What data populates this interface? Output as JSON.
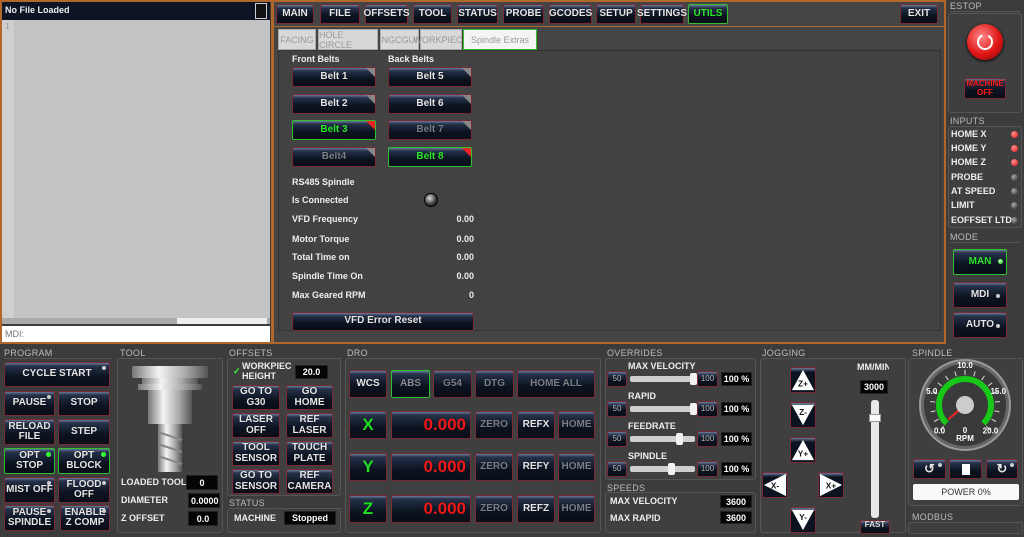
{
  "gcode": {
    "title": "No File Loaded",
    "line_number": "1",
    "mdi_placeholder": "MDI:"
  },
  "nav": {
    "tabs": [
      "MAIN",
      "FILE",
      "OFFSETS",
      "TOOL",
      "STATUS",
      "PROBE",
      "GCODES",
      "SETUP",
      "SETTINGS",
      "UTILS"
    ],
    "active": "UTILS",
    "exit": "EXIT"
  },
  "subtabs": {
    "items": [
      "FACING",
      "HOLE CIRCLE",
      "NGCGUI",
      "WORKPIECE",
      "Spindle Extras"
    ],
    "active": "Spindle Extras"
  },
  "spindle_extras": {
    "front_label": "Front Belts",
    "back_label": "Back Belts",
    "belts": [
      "Belt 1",
      "Belt 2",
      "Belt 3",
      "Belt4",
      "Belt 5",
      "Belt 6",
      "Belt 7",
      "Belt 8"
    ],
    "active_belts": [
      "Belt 3",
      "Belt 8"
    ],
    "rs485_label": "RS485 Spindle",
    "is_connected_label": "Is Connected",
    "rows": [
      {
        "label": "VFD Frequency",
        "value": "0.00"
      },
      {
        "label": "Motor Torque",
        "value": "0.00"
      },
      {
        "label": "Total Time on",
        "value": "0.00"
      },
      {
        "label": "Spindle Time On",
        "value": "0.00"
      },
      {
        "label": "Max Geared RPM",
        "value": "0"
      }
    ],
    "reset_button": "VFD Error Reset"
  },
  "estop": {
    "label": "ESTOP",
    "machine_button": "MACHINE OFF"
  },
  "inputs": {
    "label": "INPUTS",
    "items": [
      {
        "name": "HOME X",
        "state": "on"
      },
      {
        "name": "HOME Y",
        "state": "on"
      },
      {
        "name": "HOME Z",
        "state": "on"
      },
      {
        "name": "PROBE",
        "state": "off"
      },
      {
        "name": "AT SPEED",
        "state": "off"
      },
      {
        "name": "LIMIT",
        "state": "off"
      },
      {
        "name": "EOFFSET LTD",
        "state": "off"
      }
    ]
  },
  "mode": {
    "label": "MODE",
    "items": [
      "MAN",
      "MDI",
      "AUTO"
    ],
    "active": "MAN"
  },
  "program": {
    "label": "PROGRAM",
    "buttons": [
      "CYCLE START",
      "PAUSE",
      "STOP",
      "RELOAD FILE",
      "STEP",
      "OPT STOP",
      "OPT BLOCK",
      "MIST OFF",
      "FLOOD OFF",
      "PAUSE SPINDLE",
      "ENABLE Z COMP"
    ]
  },
  "tool": {
    "label": "TOOL",
    "loaded_tool_label": "LOADED TOOL",
    "loaded_tool": "0",
    "diameter_label": "DIAMETER",
    "diameter": "0.0000",
    "z_offset_label": "Z OFFSET",
    "z_offset": "0.0"
  },
  "offsets": {
    "label": "OFFSETS",
    "workpiece_label": "WORKPIEC HEIGHT",
    "workpiece_value": "20.0",
    "buttons": [
      "GO TO G30",
      "GO HOME",
      "LASER OFF",
      "REF LASER",
      "TOOL SENSOR",
      "TOUCH PLATE",
      "GO TO SENSOR",
      "REF CAMERA"
    ]
  },
  "status": {
    "label": "STATUS",
    "machine_label": "MACHINE",
    "machine_value": "Stopped"
  },
  "dro": {
    "label": "DRO",
    "top_buttons": [
      "WCS",
      "ABS",
      "G54",
      "DTG",
      "HOME ALL"
    ],
    "active_top": "ABS",
    "axes": [
      {
        "axis": "X",
        "value": "0.000",
        "ref": "REFX"
      },
      {
        "axis": "Y",
        "value": "0.000",
        "ref": "REFY"
      },
      {
        "axis": "Z",
        "value": "0.000",
        "ref": "REFZ"
      }
    ],
    "zero": "ZERO",
    "home": "HOME"
  },
  "overrides": {
    "label": "OVERRIDES",
    "items": [
      {
        "name": "MAX VELOCITY",
        "min": "50",
        "max": "100",
        "value": "100 %",
        "percent": 100
      },
      {
        "name": "RAPID",
        "min": "50",
        "max": "100",
        "value": "100 %",
        "percent": 100
      },
      {
        "name": "FEEDRATE",
        "min": "50",
        "max": "100",
        "value": "100 %",
        "percent": 100
      },
      {
        "name": "SPINDLE",
        "min": "50",
        "max": "100",
        "value": "100 %",
        "percent": 100
      }
    ]
  },
  "speeds": {
    "label": "SPEEDS",
    "max_velocity_label": "MAX VELOCITY",
    "max_velocity": "3600",
    "max_rapid_label": "MAX RAPID",
    "max_rapid": "3600"
  },
  "jogging": {
    "label": "JOGGING",
    "units": "MM/MIN",
    "speed": "3000",
    "buttons": [
      "Z+",
      "Z-",
      "Y+",
      "X-",
      "X+",
      "Y-"
    ],
    "fast": "FAST"
  },
  "spindle": {
    "label": "SPINDLE",
    "gauge_ticks": [
      "0.0",
      "5.0",
      "10.0",
      "15.0",
      "20.0"
    ],
    "rpm": "0",
    "rpm_unit": "RPM",
    "power": "POWER 0%"
  },
  "modbus": {
    "label": "MODBUS"
  },
  "colors": {
    "accent_green": "#2ee82e",
    "border_orange": "#b0682a",
    "led_red": "#e01010",
    "dro_red": "#f01818"
  }
}
